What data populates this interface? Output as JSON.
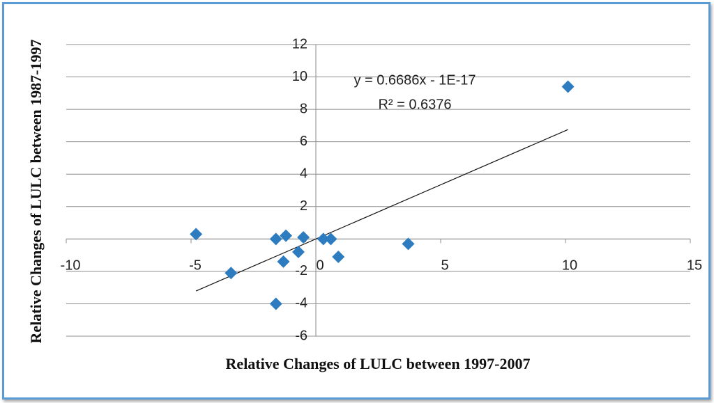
{
  "chart_data": {
    "type": "scatter",
    "x_label": "Relative Changes of LULC between 1997-2007",
    "y_label": "Relative Changes of LULC between 1987-1997",
    "x": [
      -4.8,
      -3.4,
      -1.6,
      -1.6,
      -1.3,
      -1.2,
      -0.7,
      -0.5,
      0.3,
      0.6,
      0.9,
      3.7,
      10.1
    ],
    "values": [
      0.3,
      -2.1,
      0,
      -4,
      -1.4,
      0.2,
      -0.8,
      0.1,
      0,
      0,
      -1.1,
      -0.3,
      9.4
    ],
    "color": "#2e7cc0",
    "xlim": [
      -10,
      15
    ],
    "xticks": [
      -10,
      -5,
      0,
      5,
      10,
      15
    ],
    "ylim": [
      -6,
      12
    ],
    "yticks": [
      -6,
      -4,
      -2,
      0,
      2,
      4,
      6,
      8,
      10,
      12
    ],
    "grid": true,
    "trendline": {
      "equation": "y = 0.6686x - 1E-17",
      "r_squared": "R² = 0.6376",
      "slope": 0.6686,
      "intercept": -1e-17
    }
  }
}
